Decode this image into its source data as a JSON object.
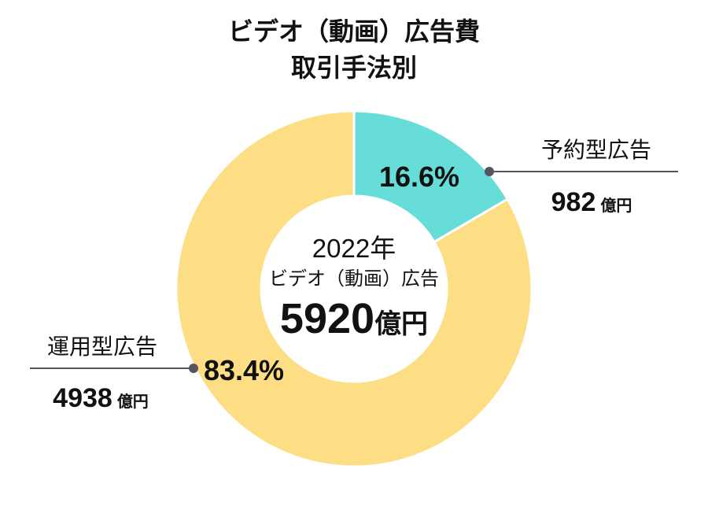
{
  "chart_data": {
    "type": "pie",
    "title_line1": "ビデオ（動画）広告費",
    "title_line2": "取引手法別",
    "center": {
      "year": "2022年",
      "label": "ビデオ（動画）広告",
      "total": "5920",
      "unit": "億円"
    },
    "slices": [
      {
        "name": "予約型広告",
        "value": 982,
        "value_label": "982",
        "unit": "億円",
        "percent": 16.6,
        "percent_label": "16.6%",
        "color": "#66DDD8"
      },
      {
        "name": "運用型広告",
        "value": 4938,
        "value_label": "4938",
        "unit": "億円",
        "percent": 83.4,
        "percent_label": "83.4%",
        "color": "#FDDE84"
      }
    ],
    "leader_color": "#55555f"
  }
}
